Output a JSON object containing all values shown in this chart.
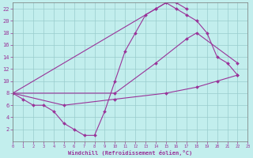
{
  "xlabel": "Windchill (Refroidissement éolien,°C)",
  "bg_color": "#c2eeed",
  "line_color": "#993399",
  "grid_color": "#99cccc",
  "xmin": 0,
  "xmax": 23,
  "ymin": 0,
  "ymax": 23,
  "xticks": [
    0,
    1,
    2,
    3,
    4,
    5,
    6,
    7,
    8,
    9,
    10,
    11,
    12,
    13,
    14,
    15,
    16,
    17,
    18,
    19,
    20,
    21,
    22,
    23
  ],
  "yticks": [
    2,
    4,
    6,
    8,
    10,
    12,
    14,
    16,
    18,
    20,
    22
  ],
  "line1_x": [
    0,
    1,
    2,
    3,
    4,
    5,
    6,
    7,
    8,
    9,
    10,
    11,
    12,
    13,
    14,
    15,
    16,
    17
  ],
  "line1_y": [
    8,
    7,
    6,
    6,
    5,
    3,
    2,
    1,
    1,
    5,
    10,
    15,
    18,
    21,
    22,
    23,
    23,
    22
  ],
  "line2_x": [
    0,
    14,
    15,
    16,
    17,
    18,
    19,
    20,
    21,
    22
  ],
  "line2_y": [
    8,
    22,
    23,
    22,
    21,
    20,
    18,
    14,
    13,
    11
  ],
  "line3_x": [
    0,
    10,
    14,
    17,
    18,
    22
  ],
  "line3_y": [
    8,
    8,
    13,
    17,
    18,
    13
  ],
  "line4_x": [
    0,
    5,
    10,
    15,
    18,
    20,
    22
  ],
  "line4_y": [
    8,
    6,
    7,
    8,
    9,
    10,
    11
  ]
}
